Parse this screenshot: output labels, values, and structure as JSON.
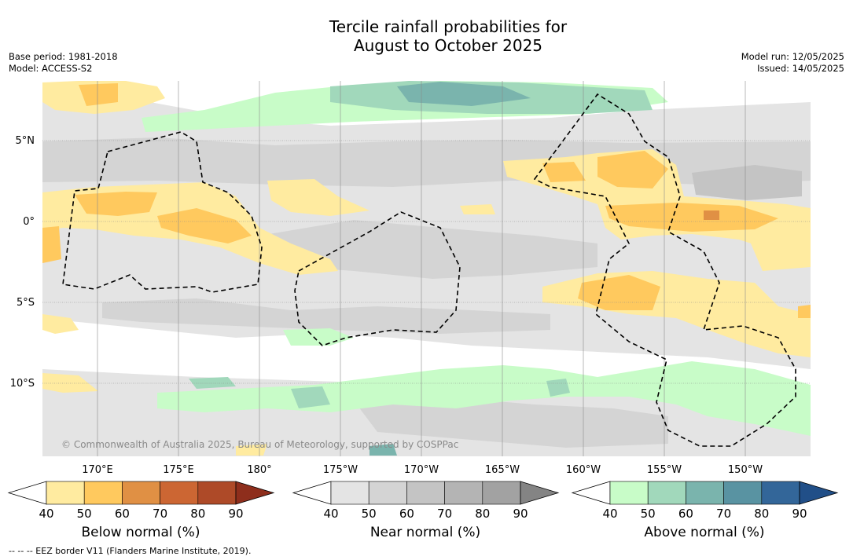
{
  "title_line1": "Tercile rainfall probabilities for",
  "title_line2": "August to October 2025",
  "base_period": "Base period: 1981-2018",
  "model": "Model: ACCESS-S2",
  "model_run": "Model run: 12/05/2025",
  "issued": "Issued: 14/05/2025",
  "lat_labels": [
    "5°N",
    "0°",
    "5°S",
    "10°S"
  ],
  "lon_labels": [
    "170°E",
    "175°E",
    "180°",
    "175°W",
    "170°W",
    "165°W",
    "160°W",
    "155°W",
    "150°W"
  ],
  "copyright": "© Commonwealth of Australia 2025, Bureau of Meteorology, supported by COSPPac",
  "colorbars": [
    {
      "label": "Below normal (%)",
      "ticks": [
        "40",
        "50",
        "60",
        "70",
        "80",
        "90"
      ],
      "colors": [
        "#ffeba0",
        "#ffc95e",
        "#e09044",
        "#cc6633",
        "#ae4a28",
        "#8e2e1c"
      ]
    },
    {
      "label": "Near normal (%)",
      "ticks": [
        "40",
        "50",
        "60",
        "70",
        "80",
        "90"
      ],
      "colors": [
        "#e4e4e4",
        "#d4d4d4",
        "#c4c4c4",
        "#b4b4b4",
        "#a2a2a2",
        "#848484"
      ]
    },
    {
      "label": "Above normal (%)",
      "ticks": [
        "40",
        "50",
        "60",
        "70",
        "80",
        "90"
      ],
      "colors": [
        "#c8fcc8",
        "#a1d8bb",
        "#7ab4ad",
        "#5993a2",
        "#336699",
        "#214f88"
      ]
    }
  ],
  "footnote": "--  --  -- EEZ border V11 (Flanders Marine Institute, 2019)."
}
